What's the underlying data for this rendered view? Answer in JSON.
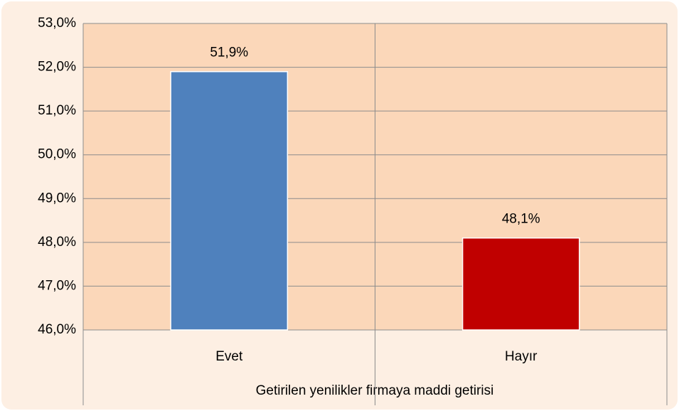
{
  "chart_data": {
    "type": "bar",
    "x_label": "Getirilen yenilikler firmaya maddi getirisi",
    "categories": [
      "Evet",
      "Hayır"
    ],
    "values": [
      51.9,
      48.1
    ],
    "value_labels": [
      "51,9%",
      "48,1%"
    ],
    "colors": [
      "#4f81bd",
      "#c00000"
    ],
    "ylim": [
      46,
      53
    ],
    "yticks": [
      {
        "value": 46,
        "label": "46,0%"
      },
      {
        "value": 47,
        "label": "47,0%"
      },
      {
        "value": 48,
        "label": "48,0%"
      },
      {
        "value": 49,
        "label": "49,0%"
      },
      {
        "value": 50,
        "label": "50,0%"
      },
      {
        "value": 51,
        "label": "51,0%"
      },
      {
        "value": 52,
        "label": "52,0%"
      },
      {
        "value": 53,
        "label": "53,0%"
      }
    ],
    "grid": true
  }
}
